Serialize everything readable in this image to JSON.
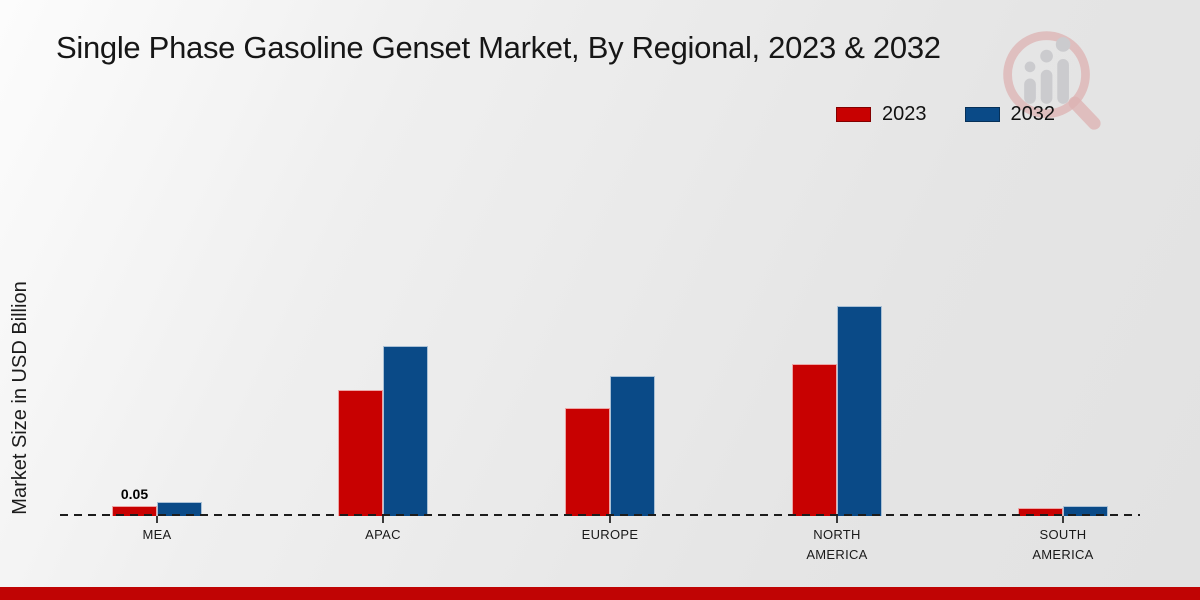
{
  "title": "Single Phase Gasoline Genset Market, By Regional, 2023 & 2032",
  "y_axis_label": "Market Size in USD Billion",
  "footer_bar_color": "#c00404",
  "icons": {
    "logo": "market-research-growth-magnifier-logo"
  },
  "chart_data": {
    "type": "bar",
    "title": "Single Phase Gasoline Genset Market, By Regional, 2023 & 2032",
    "xlabel": "",
    "ylabel": "Market Size in USD Billion",
    "categories": [
      "MEA",
      "APAC",
      "EUROPE",
      "NORTH\nAMERICA",
      "SOUTH\nAMERICA"
    ],
    "series": [
      {
        "name": "2023",
        "color": "#c80101",
        "values": [
          0.05,
          0.63,
          0.54,
          0.76,
          0.04
        ],
        "point_labels": [
          "0.05",
          "",
          "",
          "",
          ""
        ]
      },
      {
        "name": "2032",
        "color": "#0a4a87",
        "values": [
          0.07,
          0.85,
          0.7,
          1.05,
          0.05
        ],
        "point_labels": [
          "",
          "",
          "",
          "",
          ""
        ]
      }
    ],
    "ylim": [
      0,
      1.4
    ],
    "grid": false,
    "legend_position": "top-right",
    "baseline_style": "dashed",
    "y_ticks_visible": false
  }
}
